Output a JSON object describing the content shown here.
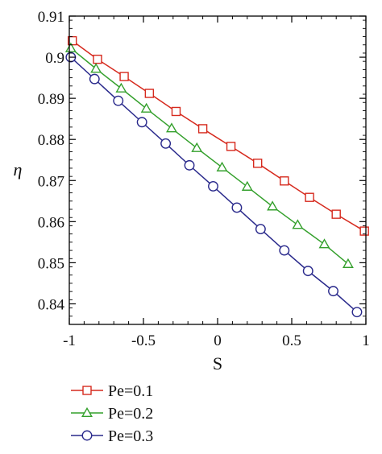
{
  "colors": {
    "axis": "#000000"
  },
  "chart_data": {
    "type": "line",
    "title": "",
    "xlabel": "S",
    "ylabel": "η",
    "xlim": [
      -1,
      1
    ],
    "ylim": [
      0.835,
      0.91
    ],
    "grid": false,
    "legend": "below-left",
    "xticks": [
      -1,
      -0.5,
      0,
      0.5,
      1
    ],
    "xtick_labels": [
      "-1",
      "-0.5",
      "0",
      "0.5",
      "1"
    ],
    "yticks": [
      0.84,
      0.85,
      0.86,
      0.87,
      0.88,
      0.89,
      0.9,
      0.91
    ],
    "ytick_labels": [
      "0.84",
      "0.85",
      "0.86",
      "0.87",
      "0.88",
      "0.89",
      "0.9",
      "0.91"
    ],
    "series": [
      {
        "name": "Pe=0.1",
        "color": "#d62a1e",
        "marker": "square",
        "x": [
          -0.98,
          -0.81,
          -0.63,
          -0.46,
          -0.28,
          -0.1,
          0.09,
          0.27,
          0.45,
          0.62,
          0.8,
          0.99
        ],
        "y": [
          0.904,
          0.8995,
          0.8953,
          0.8912,
          0.8868,
          0.8826,
          0.8783,
          0.8742,
          0.8699,
          0.8659,
          0.8618,
          0.8577
        ]
      },
      {
        "name": "Pe=0.2",
        "color": "#34a02c",
        "marker": "triangle",
        "x": [
          -0.99,
          -0.82,
          -0.65,
          -0.48,
          -0.31,
          -0.14,
          0.03,
          0.2,
          0.37,
          0.54,
          0.72,
          0.88
        ],
        "y": [
          0.9022,
          0.8972,
          0.8924,
          0.8875,
          0.8827,
          0.8779,
          0.8732,
          0.8685,
          0.8637,
          0.8592,
          0.8545,
          0.8497
        ]
      },
      {
        "name": "Pe=0.3",
        "color": "#2a2a8c",
        "marker": "circle",
        "x": [
          -0.99,
          -0.83,
          -0.67,
          -0.51,
          -0.35,
          -0.19,
          -0.03,
          0.13,
          0.29,
          0.45,
          0.61,
          0.78,
          0.94
        ],
        "y": [
          0.9,
          0.8947,
          0.8894,
          0.8842,
          0.879,
          0.8737,
          0.8686,
          0.8634,
          0.8582,
          0.853,
          0.848,
          0.8431,
          0.838
        ]
      }
    ]
  }
}
